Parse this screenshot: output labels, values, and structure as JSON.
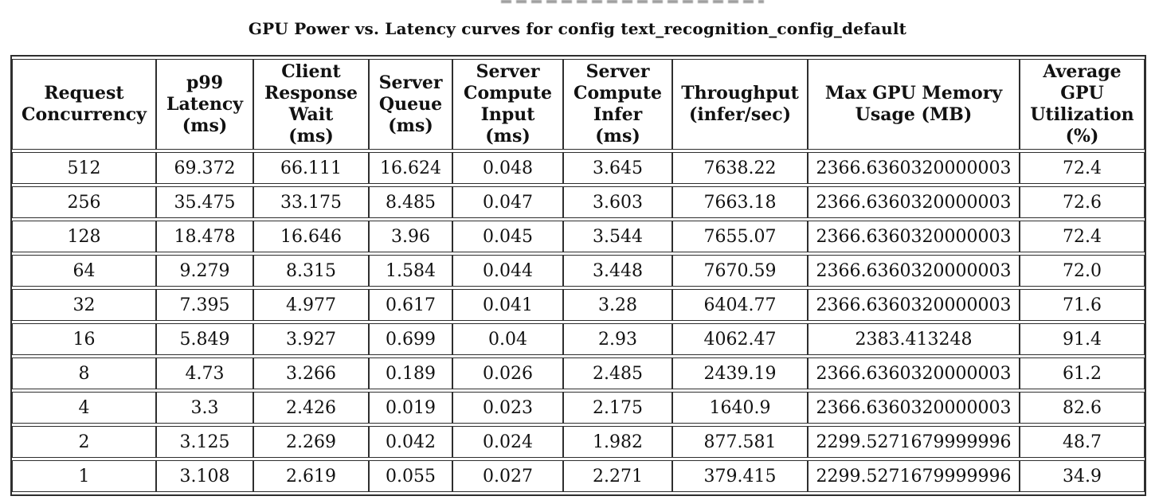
{
  "title": "GPU Power vs. Latency curves for config text_recognition_config_default",
  "colors": {
    "background": "#ffffff",
    "text": "#111111",
    "border": "#2e2e2e"
  },
  "table": {
    "columns": [
      "Request\nConcurrency",
      "p99\nLatency\n(ms)",
      "Client\nResponse\nWait\n(ms)",
      "Server\nQueue\n(ms)",
      "Server\nCompute\nInput\n(ms)",
      "Server\nCompute\nInfer\n(ms)",
      "Throughput\n(infer/sec)",
      "Max GPU Memory\nUsage (MB)",
      "Average\nGPU\nUtilization\n(%)"
    ],
    "rows": [
      [
        "512",
        "69.372",
        "66.111",
        "16.624",
        "0.048",
        "3.645",
        "7638.22",
        "2366.6360320000003",
        "72.4"
      ],
      [
        "256",
        "35.475",
        "33.175",
        "8.485",
        "0.047",
        "3.603",
        "7663.18",
        "2366.6360320000003",
        "72.6"
      ],
      [
        "128",
        "18.478",
        "16.646",
        "3.96",
        "0.045",
        "3.544",
        "7655.07",
        "2366.6360320000003",
        "72.4"
      ],
      [
        "64",
        "9.279",
        "8.315",
        "1.584",
        "0.044",
        "3.448",
        "7670.59",
        "2366.6360320000003",
        "72.0"
      ],
      [
        "32",
        "7.395",
        "4.977",
        "0.617",
        "0.041",
        "3.28",
        "6404.77",
        "2366.6360320000003",
        "71.6"
      ],
      [
        "16",
        "5.849",
        "3.927",
        "0.699",
        "0.04",
        "2.93",
        "4062.47",
        "2383.413248",
        "91.4"
      ],
      [
        "8",
        "4.73",
        "3.266",
        "0.189",
        "0.026",
        "2.485",
        "2439.19",
        "2366.6360320000003",
        "61.2"
      ],
      [
        "4",
        "3.3",
        "2.426",
        "0.019",
        "0.023",
        "2.175",
        "1640.9",
        "2366.6360320000003",
        "82.6"
      ],
      [
        "2",
        "3.125",
        "2.269",
        "0.042",
        "0.024",
        "1.982",
        "877.581",
        "2299.5271679999996",
        "48.7"
      ],
      [
        "1",
        "3.108",
        "2.619",
        "0.055",
        "0.027",
        "2.271",
        "379.415",
        "2299.5271679999996",
        "34.9"
      ]
    ]
  }
}
